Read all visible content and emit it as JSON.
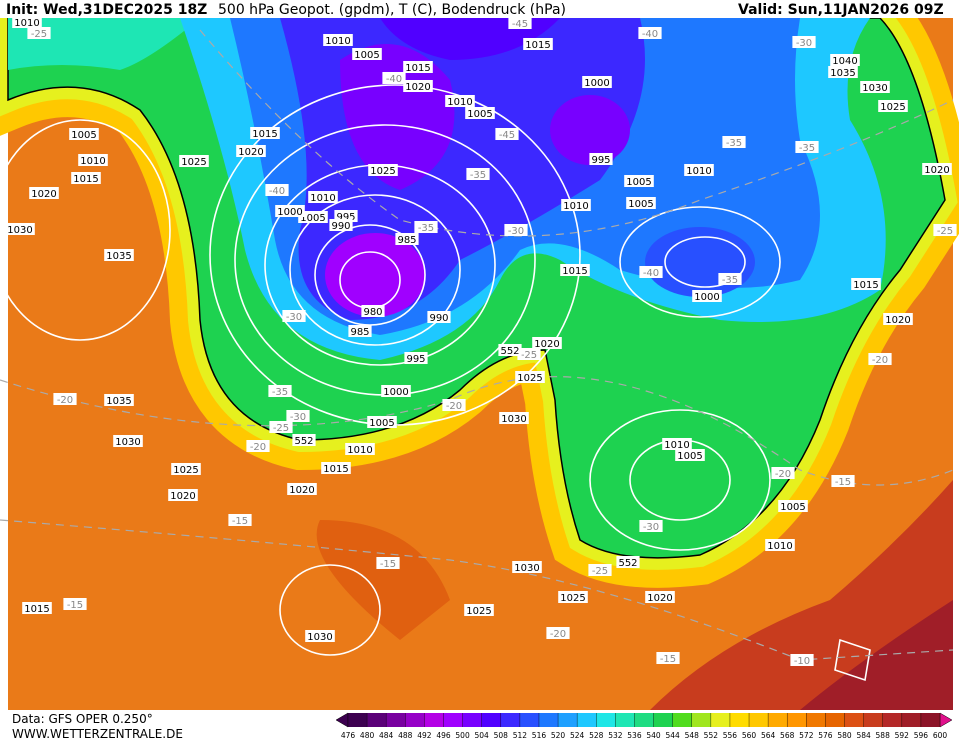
{
  "header": {
    "init": "Init: Wed,31DEC2025 18Z",
    "title": "500 hPa Geopot. (gpdm), T (C), Bodendruck (hPa)",
    "valid": "Valid: Sun,11JAN2026 09Z"
  },
  "footer": {
    "data": "Data: GFS OPER 0.250°",
    "site": "WWW.WETTERZENTRALE.DE"
  },
  "colorbar": {
    "ticks": [
      476,
      480,
      484,
      488,
      492,
      496,
      500,
      504,
      508,
      512,
      516,
      520,
      524,
      528,
      532,
      536,
      540,
      544,
      548,
      552,
      556,
      560,
      564,
      568,
      572,
      576,
      580,
      584,
      588,
      592,
      596,
      600
    ],
    "colors": [
      "#3c0050",
      "#5a0078",
      "#7800a0",
      "#9600c8",
      "#b400e6",
      "#a000ff",
      "#7800ff",
      "#5000ff",
      "#3c28ff",
      "#2850ff",
      "#1e78ff",
      "#1ea0ff",
      "#1ec8ff",
      "#1ee6e6",
      "#1ee6b4",
      "#1edc82",
      "#1ed250",
      "#50dc1e",
      "#a0e61e",
      "#e6f01e",
      "#ffdc00",
      "#ffc800",
      "#ffaa00",
      "#ff9600",
      "#f07800",
      "#e66400",
      "#dc5014",
      "#c83c1e",
      "#b42828",
      "#a01e28",
      "#8c1428"
    ]
  },
  "pressure_labels": [
    "1010",
    "1005",
    "1015",
    "1020",
    "1010",
    "1005",
    "1015",
    "1000",
    "995",
    "1005",
    "1005",
    "1010",
    "1015",
    "1020",
    "1025",
    "1010",
    "1005",
    "995",
    "990",
    "985",
    "980",
    "985",
    "990",
    "995",
    "1000",
    "1005",
    "1010",
    "1015",
    "1020",
    "1025",
    "1020",
    "1030",
    "1035",
    "1035",
    "1030",
    "1020",
    "1015",
    "1010",
    "1005",
    "1025",
    "1000",
    "1015",
    "1020",
    "1025",
    "1030",
    "1035",
    "1040",
    "1020",
    "1010",
    "1015",
    "1020",
    "1025",
    "1030",
    "1010",
    "1005",
    "1005",
    "1010",
    "1020",
    "1025",
    "1030",
    "1025",
    "1030",
    "1015",
    "1010",
    "1000"
  ],
  "temperature_labels": [
    "-25",
    "-45",
    "-40",
    "-30",
    "-40",
    "-40",
    "-45",
    "-35",
    "-30",
    "-35",
    "-35",
    "-35",
    "-40",
    "-35",
    "-30",
    "-25",
    "-35",
    "-30",
    "-25",
    "-20",
    "-20",
    "-20",
    "-15",
    "-15",
    "-15",
    "-25",
    "-20",
    "-15",
    "-10",
    "-30",
    "-20",
    "-15",
    "-20",
    "-25"
  ],
  "geopotential_labels": [
    "552",
    "552",
    "552"
  ]
}
